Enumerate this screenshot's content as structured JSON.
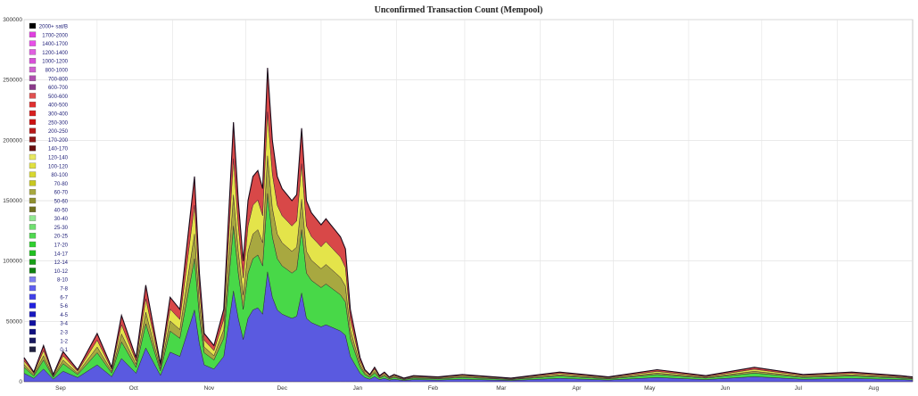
{
  "chart_data": {
    "type": "area",
    "title": "Unconfirmed Transaction Count (Mempool)",
    "ylim": [
      0,
      300000
    ],
    "yticks": [
      "0",
      "50000",
      "100000",
      "150000",
      "200000",
      "250000",
      "300000"
    ],
    "y_tick_values": [
      0,
      50000,
      100000,
      150000,
      200000,
      250000,
      300000
    ],
    "x_categories": [
      "Sep",
      "Oct",
      "Nov",
      "Dec",
      "Jan",
      "Feb",
      "Mar",
      "Apr",
      "May",
      "Jun",
      "Jul",
      "Aug"
    ],
    "grid": true,
    "legend_position": "top-left",
    "legend": [
      {
        "label": "2000+ sat/B",
        "color": "#000000"
      },
      {
        "label": "1700-2000",
        "color": "#e040e0"
      },
      {
        "label": "1400-1700",
        "color": "#e850e8"
      },
      {
        "label": "1200-1400",
        "color": "#e060e0"
      },
      {
        "label": "1000-1200",
        "color": "#d850d8"
      },
      {
        "label": "800-1000",
        "color": "#d060d0"
      },
      {
        "label": "700-800",
        "color": "#b050b0"
      },
      {
        "label": "600-700",
        "color": "#8a3a8a"
      },
      {
        "label": "500-600",
        "color": "#e05050"
      },
      {
        "label": "400-500",
        "color": "#e03030"
      },
      {
        "label": "300-400",
        "color": "#d82020"
      },
      {
        "label": "250-300",
        "color": "#cc1010"
      },
      {
        "label": "200-250",
        "color": "#b81818"
      },
      {
        "label": "170-200",
        "color": "#901818"
      },
      {
        "label": "140-170",
        "color": "#6a1010"
      },
      {
        "label": "120-140",
        "color": "#e8e860"
      },
      {
        "label": "100-120",
        "color": "#e0e040"
      },
      {
        "label": "80-100",
        "color": "#d8d830"
      },
      {
        "label": "70-80",
        "color": "#c8c820"
      },
      {
        "label": "60-70",
        "color": "#a8a840"
      },
      {
        "label": "50-60",
        "color": "#909030"
      },
      {
        "label": "40-50",
        "color": "#707020"
      },
      {
        "label": "30-40",
        "color": "#90e890"
      },
      {
        "label": "25-30",
        "color": "#70e070"
      },
      {
        "label": "20-25",
        "color": "#50d850"
      },
      {
        "label": "17-20",
        "color": "#30d030"
      },
      {
        "label": "14-17",
        "color": "#20c020"
      },
      {
        "label": "12-14",
        "color": "#18a018"
      },
      {
        "label": "10-12",
        "color": "#108010"
      },
      {
        "label": "8-10",
        "color": "#8080f0"
      },
      {
        "label": "7-8",
        "color": "#6060f0"
      },
      {
        "label": "6-7",
        "color": "#4040e8"
      },
      {
        "label": "5-6",
        "color": "#2020e0"
      },
      {
        "label": "4-5",
        "color": "#1818c0"
      },
      {
        "label": "3-4",
        "color": "#1010a0"
      },
      {
        "label": "2-3",
        "color": "#101080"
      },
      {
        "label": "1-2",
        "color": "#181860"
      },
      {
        "label": "0-1",
        "color": "#202040"
      }
    ],
    "band_groups": [
      {
        "name": "blue",
        "color": "#5a5ae0"
      },
      {
        "name": "green",
        "color": "#48d848"
      },
      {
        "name": "olive",
        "color": "#a8a840"
      },
      {
        "name": "yellow",
        "color": "#e4e44a"
      },
      {
        "name": "red",
        "color": "#d84848"
      }
    ],
    "series_days": [
      0,
      4,
      8,
      12,
      16,
      22,
      30,
      36,
      40,
      46,
      50,
      56,
      60,
      64,
      70,
      72,
      74,
      78,
      82,
      86,
      88,
      90,
      92,
      94,
      96,
      98,
      100,
      102,
      104,
      106,
      108,
      110,
      112,
      114,
      116,
      118,
      120,
      122,
      124,
      126,
      128,
      130,
      132,
      134,
      136,
      138,
      140,
      142,
      144,
      146,
      148,
      150,
      152,
      156,
      160,
      170,
      180,
      200,
      220,
      240,
      260,
      280,
      300,
      320,
      340,
      360,
      365
    ],
    "series_total": [
      20000,
      8000,
      30000,
      6000,
      25000,
      10000,
      40000,
      12000,
      55000,
      20000,
      80000,
      15000,
      70000,
      60000,
      170000,
      90000,
      40000,
      30000,
      60000,
      215000,
      150000,
      100000,
      150000,
      170000,
      175000,
      160000,
      260000,
      200000,
      170000,
      160000,
      155000,
      150000,
      155000,
      210000,
      150000,
      140000,
      135000,
      130000,
      135000,
      130000,
      125000,
      120000,
      110000,
      60000,
      40000,
      20000,
      10000,
      6000,
      12000,
      5000,
      8000,
      4000,
      6000,
      3000,
      5000,
      4000,
      6000,
      3000,
      8000,
      4000,
      10000,
      5000,
      12000,
      6000,
      8000,
      5000,
      4000
    ],
    "band_fractions": [
      0.35,
      0.25,
      0.12,
      0.14,
      0.14
    ]
  }
}
